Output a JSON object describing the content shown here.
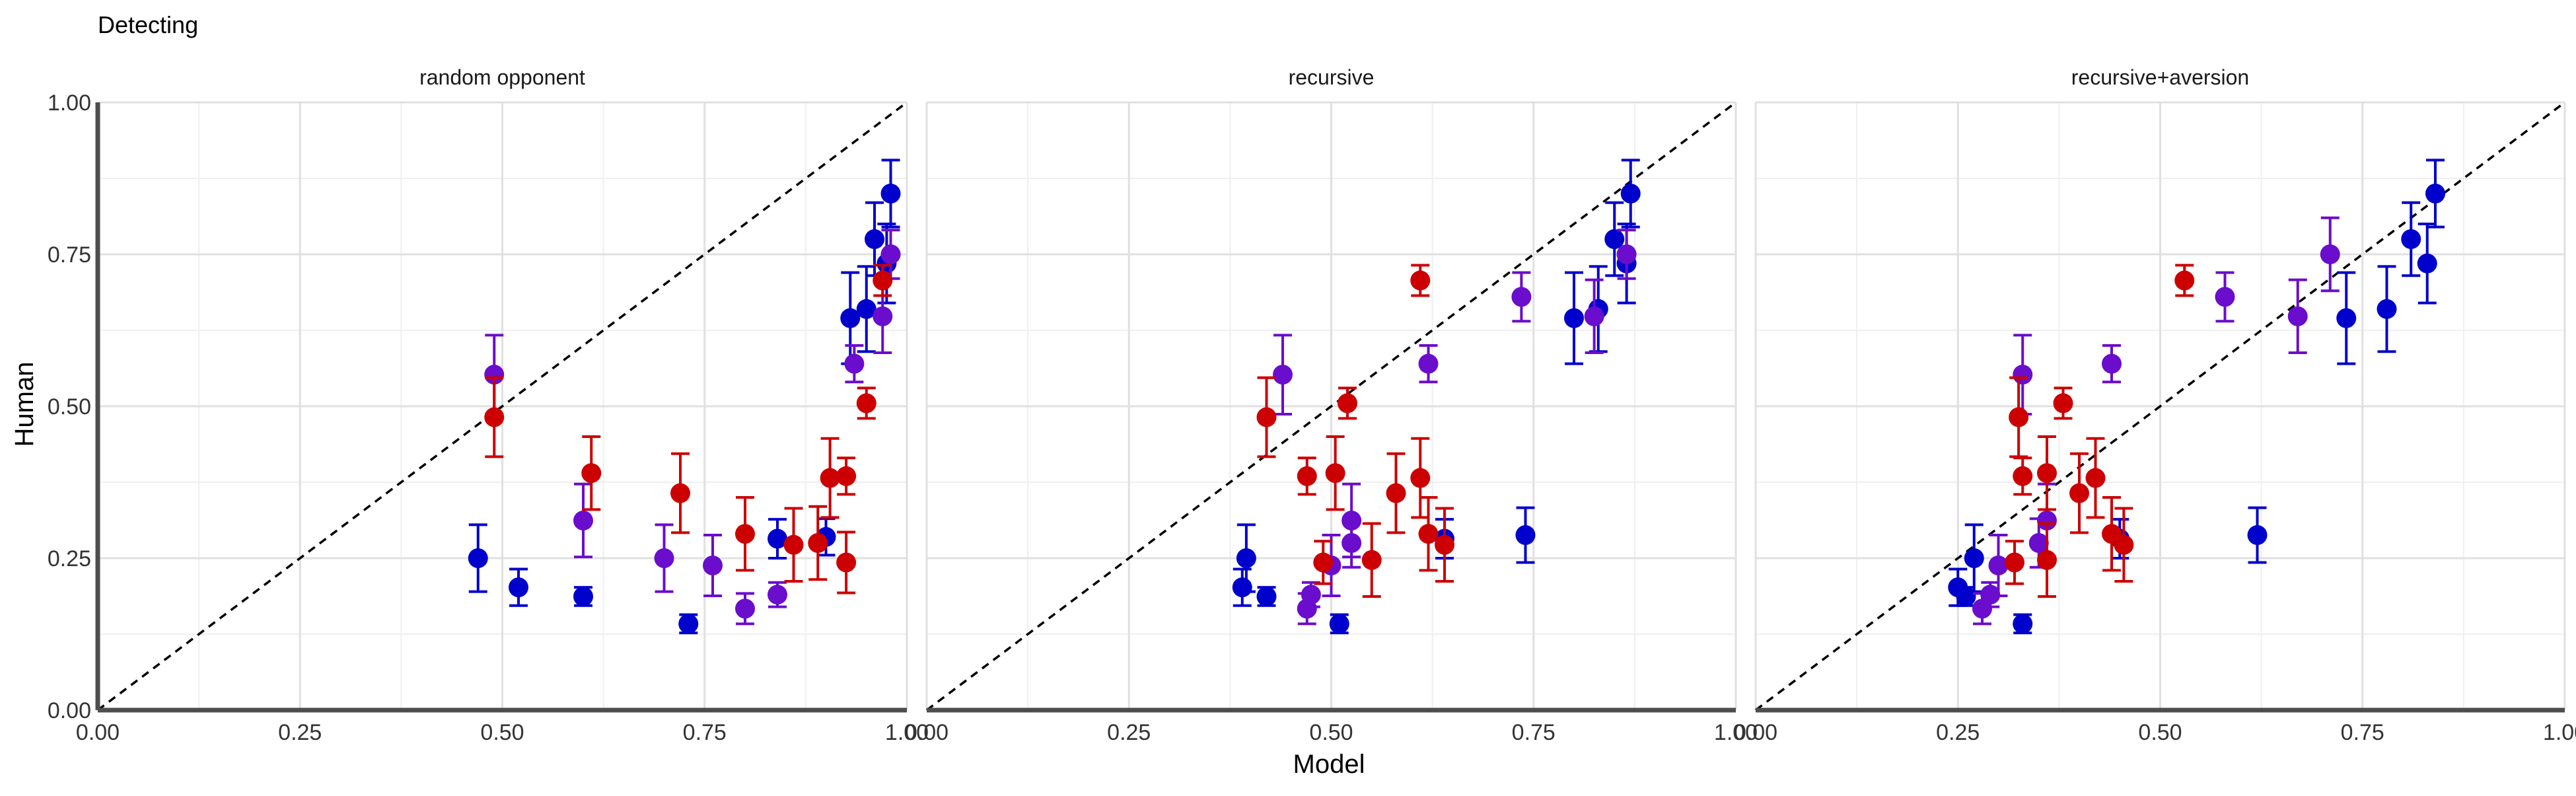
{
  "title": "Detecting",
  "xlabel": "Model",
  "ylabel": "Human",
  "colors": {
    "blue": "#0000cc",
    "purple": "#6a0dcc",
    "red": "#cc0000",
    "grid_major": "#e0e0e0",
    "grid_minor": "#efefef",
    "axis": "#4d4d4d",
    "diagonal": "#000000"
  },
  "chart_data": {
    "type": "scatter",
    "xlim": [
      0,
      1
    ],
    "ylim": [
      0,
      1
    ],
    "ticks": [
      "0.00",
      "0.25",
      "0.50",
      "0.75",
      "1.00"
    ],
    "tick_values": [
      0,
      0.25,
      0.5,
      0.75,
      1
    ],
    "grid": true,
    "reference_line": "y = x (dashed)",
    "panels": [
      {
        "title": "random opponent",
        "points": [
          {
            "color": "blue",
            "x": 0.47,
            "y": 0.25,
            "lo": 0.195,
            "hi": 0.305
          },
          {
            "color": "blue",
            "x": 0.52,
            "y": 0.202,
            "lo": 0.172,
            "hi": 0.232
          },
          {
            "color": "blue",
            "x": 0.6,
            "y": 0.187,
            "lo": 0.172,
            "hi": 0.202
          },
          {
            "color": "blue",
            "x": 0.73,
            "y": 0.142,
            "lo": 0.127,
            "hi": 0.157
          },
          {
            "color": "blue",
            "x": 0.84,
            "y": 0.282,
            "lo": 0.25,
            "hi": 0.314
          },
          {
            "color": "blue",
            "x": 0.9,
            "y": 0.285,
            "lo": 0.255,
            "hi": 0.315
          },
          {
            "color": "blue",
            "x": 0.93,
            "y": 0.645,
            "lo": 0.57,
            "hi": 0.72
          },
          {
            "color": "blue",
            "x": 0.95,
            "y": 0.66,
            "lo": 0.59,
            "hi": 0.73
          },
          {
            "color": "blue",
            "x": 0.96,
            "y": 0.775,
            "lo": 0.715,
            "hi": 0.835
          },
          {
            "color": "blue",
            "x": 0.975,
            "y": 0.735,
            "lo": 0.67,
            "hi": 0.8
          },
          {
            "color": "blue",
            "x": 0.98,
            "y": 0.85,
            "lo": 0.795,
            "hi": 0.905
          },
          {
            "color": "purple",
            "x": 0.49,
            "y": 0.552,
            "lo": 0.487,
            "hi": 0.617
          },
          {
            "color": "purple",
            "x": 0.6,
            "y": 0.312,
            "lo": 0.252,
            "hi": 0.372
          },
          {
            "color": "purple",
            "x": 0.7,
            "y": 0.25,
            "lo": 0.195,
            "hi": 0.305
          },
          {
            "color": "purple",
            "x": 0.76,
            "y": 0.238,
            "lo": 0.188,
            "hi": 0.288
          },
          {
            "color": "purple",
            "x": 0.8,
            "y": 0.167,
            "lo": 0.142,
            "hi": 0.192
          },
          {
            "color": "purple",
            "x": 0.84,
            "y": 0.19,
            "lo": 0.17,
            "hi": 0.21
          },
          {
            "color": "purple",
            "x": 0.935,
            "y": 0.57,
            "lo": 0.54,
            "hi": 0.6
          },
          {
            "color": "purple",
            "x": 0.97,
            "y": 0.648,
            "lo": 0.588,
            "hi": 0.708
          },
          {
            "color": "purple",
            "x": 0.98,
            "y": 0.75,
            "lo": 0.71,
            "hi": 0.79
          },
          {
            "color": "red",
            "x": 0.49,
            "y": 0.482,
            "lo": 0.417,
            "hi": 0.547
          },
          {
            "color": "red",
            "x": 0.61,
            "y": 0.39,
            "lo": 0.33,
            "hi": 0.45
          },
          {
            "color": "red",
            "x": 0.72,
            "y": 0.357,
            "lo": 0.292,
            "hi": 0.422
          },
          {
            "color": "red",
            "x": 0.8,
            "y": 0.29,
            "lo": 0.23,
            "hi": 0.35
          },
          {
            "color": "red",
            "x": 0.86,
            "y": 0.272,
            "lo": 0.212,
            "hi": 0.332
          },
          {
            "color": "red",
            "x": 0.89,
            "y": 0.275,
            "lo": 0.215,
            "hi": 0.335
          },
          {
            "color": "red",
            "x": 0.905,
            "y": 0.382,
            "lo": 0.317,
            "hi": 0.447
          },
          {
            "color": "red",
            "x": 0.925,
            "y": 0.385,
            "lo": 0.355,
            "hi": 0.415
          },
          {
            "color": "red",
            "x": 0.925,
            "y": 0.243,
            "lo": 0.193,
            "hi": 0.293
          },
          {
            "color": "red",
            "x": 0.95,
            "y": 0.505,
            "lo": 0.48,
            "hi": 0.53
          },
          {
            "color": "red",
            "x": 0.97,
            "y": 0.707,
            "lo": 0.682,
            "hi": 0.732
          }
        ]
      },
      {
        "title": "recursive",
        "points": [
          {
            "color": "blue",
            "x": 0.395,
            "y": 0.25,
            "lo": 0.195,
            "hi": 0.305
          },
          {
            "color": "blue",
            "x": 0.39,
            "y": 0.202,
            "lo": 0.172,
            "hi": 0.232
          },
          {
            "color": "blue",
            "x": 0.42,
            "y": 0.187,
            "lo": 0.172,
            "hi": 0.202
          },
          {
            "color": "blue",
            "x": 0.51,
            "y": 0.142,
            "lo": 0.127,
            "hi": 0.157
          },
          {
            "color": "blue",
            "x": 0.64,
            "y": 0.282,
            "lo": 0.25,
            "hi": 0.314
          },
          {
            "color": "blue",
            "x": 0.74,
            "y": 0.288,
            "lo": 0.243,
            "hi": 0.333
          },
          {
            "color": "blue",
            "x": 0.8,
            "y": 0.645,
            "lo": 0.57,
            "hi": 0.72
          },
          {
            "color": "blue",
            "x": 0.83,
            "y": 0.66,
            "lo": 0.59,
            "hi": 0.73
          },
          {
            "color": "blue",
            "x": 0.85,
            "y": 0.775,
            "lo": 0.715,
            "hi": 0.835
          },
          {
            "color": "blue",
            "x": 0.865,
            "y": 0.735,
            "lo": 0.67,
            "hi": 0.8
          },
          {
            "color": "blue",
            "x": 0.87,
            "y": 0.85,
            "lo": 0.795,
            "hi": 0.905
          },
          {
            "color": "purple",
            "x": 0.44,
            "y": 0.552,
            "lo": 0.487,
            "hi": 0.617
          },
          {
            "color": "purple",
            "x": 0.525,
            "y": 0.312,
            "lo": 0.252,
            "hi": 0.372
          },
          {
            "color": "purple",
            "x": 0.525,
            "y": 0.275,
            "lo": 0.235,
            "hi": 0.315
          },
          {
            "color": "purple",
            "x": 0.5,
            "y": 0.238,
            "lo": 0.188,
            "hi": 0.288
          },
          {
            "color": "purple",
            "x": 0.47,
            "y": 0.167,
            "lo": 0.142,
            "hi": 0.192
          },
          {
            "color": "purple",
            "x": 0.475,
            "y": 0.19,
            "lo": 0.17,
            "hi": 0.21
          },
          {
            "color": "purple",
            "x": 0.62,
            "y": 0.57,
            "lo": 0.54,
            "hi": 0.6
          },
          {
            "color": "purple",
            "x": 0.735,
            "y": 0.68,
            "lo": 0.64,
            "hi": 0.72
          },
          {
            "color": "purple",
            "x": 0.825,
            "y": 0.648,
            "lo": 0.588,
            "hi": 0.708
          },
          {
            "color": "purple",
            "x": 0.865,
            "y": 0.75,
            "lo": 0.71,
            "hi": 0.79
          },
          {
            "color": "red",
            "x": 0.42,
            "y": 0.482,
            "lo": 0.417,
            "hi": 0.547
          },
          {
            "color": "red",
            "x": 0.47,
            "y": 0.385,
            "lo": 0.355,
            "hi": 0.415
          },
          {
            "color": "red",
            "x": 0.49,
            "y": 0.243,
            "lo": 0.208,
            "hi": 0.278
          },
          {
            "color": "red",
            "x": 0.505,
            "y": 0.39,
            "lo": 0.33,
            "hi": 0.45
          },
          {
            "color": "red",
            "x": 0.52,
            "y": 0.505,
            "lo": 0.48,
            "hi": 0.53
          },
          {
            "color": "red",
            "x": 0.55,
            "y": 0.247,
            "lo": 0.187,
            "hi": 0.307
          },
          {
            "color": "red",
            "x": 0.58,
            "y": 0.357,
            "lo": 0.292,
            "hi": 0.422
          },
          {
            "color": "red",
            "x": 0.61,
            "y": 0.382,
            "lo": 0.317,
            "hi": 0.447
          },
          {
            "color": "red",
            "x": 0.62,
            "y": 0.29,
            "lo": 0.23,
            "hi": 0.35
          },
          {
            "color": "red",
            "x": 0.64,
            "y": 0.272,
            "lo": 0.212,
            "hi": 0.332
          },
          {
            "color": "red",
            "x": 0.61,
            "y": 0.707,
            "lo": 0.682,
            "hi": 0.732
          }
        ]
      },
      {
        "title": "recursive+aversion",
        "points": [
          {
            "color": "blue",
            "x": 0.27,
            "y": 0.25,
            "lo": 0.195,
            "hi": 0.305
          },
          {
            "color": "blue",
            "x": 0.25,
            "y": 0.202,
            "lo": 0.172,
            "hi": 0.232
          },
          {
            "color": "blue",
            "x": 0.26,
            "y": 0.187,
            "lo": 0.172,
            "hi": 0.202
          },
          {
            "color": "blue",
            "x": 0.33,
            "y": 0.142,
            "lo": 0.127,
            "hi": 0.157
          },
          {
            "color": "blue",
            "x": 0.45,
            "y": 0.282,
            "lo": 0.25,
            "hi": 0.314
          },
          {
            "color": "blue",
            "x": 0.62,
            "y": 0.288,
            "lo": 0.243,
            "hi": 0.333
          },
          {
            "color": "blue",
            "x": 0.73,
            "y": 0.645,
            "lo": 0.57,
            "hi": 0.72
          },
          {
            "color": "blue",
            "x": 0.78,
            "y": 0.66,
            "lo": 0.59,
            "hi": 0.73
          },
          {
            "color": "blue",
            "x": 0.81,
            "y": 0.775,
            "lo": 0.715,
            "hi": 0.835
          },
          {
            "color": "blue",
            "x": 0.83,
            "y": 0.735,
            "lo": 0.67,
            "hi": 0.8
          },
          {
            "color": "blue",
            "x": 0.84,
            "y": 0.85,
            "lo": 0.795,
            "hi": 0.905
          },
          {
            "color": "purple",
            "x": 0.33,
            "y": 0.552,
            "lo": 0.487,
            "hi": 0.617
          },
          {
            "color": "purple",
            "x": 0.36,
            "y": 0.312,
            "lo": 0.252,
            "hi": 0.372
          },
          {
            "color": "purple",
            "x": 0.35,
            "y": 0.275,
            "lo": 0.235,
            "hi": 0.315
          },
          {
            "color": "purple",
            "x": 0.3,
            "y": 0.238,
            "lo": 0.188,
            "hi": 0.288
          },
          {
            "color": "purple",
            "x": 0.28,
            "y": 0.167,
            "lo": 0.142,
            "hi": 0.192
          },
          {
            "color": "purple",
            "x": 0.29,
            "y": 0.19,
            "lo": 0.17,
            "hi": 0.21
          },
          {
            "color": "purple",
            "x": 0.44,
            "y": 0.57,
            "lo": 0.54,
            "hi": 0.6
          },
          {
            "color": "purple",
            "x": 0.58,
            "y": 0.68,
            "lo": 0.64,
            "hi": 0.72
          },
          {
            "color": "purple",
            "x": 0.67,
            "y": 0.648,
            "lo": 0.588,
            "hi": 0.708
          },
          {
            "color": "purple",
            "x": 0.71,
            "y": 0.75,
            "lo": 0.69,
            "hi": 0.81
          },
          {
            "color": "red",
            "x": 0.325,
            "y": 0.482,
            "lo": 0.417,
            "hi": 0.547
          },
          {
            "color": "red",
            "x": 0.33,
            "y": 0.385,
            "lo": 0.355,
            "hi": 0.415
          },
          {
            "color": "red",
            "x": 0.32,
            "y": 0.243,
            "lo": 0.208,
            "hi": 0.278
          },
          {
            "color": "red",
            "x": 0.36,
            "y": 0.39,
            "lo": 0.33,
            "hi": 0.45
          },
          {
            "color": "red",
            "x": 0.38,
            "y": 0.505,
            "lo": 0.48,
            "hi": 0.53
          },
          {
            "color": "red",
            "x": 0.36,
            "y": 0.247,
            "lo": 0.187,
            "hi": 0.307
          },
          {
            "color": "red",
            "x": 0.4,
            "y": 0.357,
            "lo": 0.292,
            "hi": 0.422
          },
          {
            "color": "red",
            "x": 0.42,
            "y": 0.382,
            "lo": 0.317,
            "hi": 0.447
          },
          {
            "color": "red",
            "x": 0.44,
            "y": 0.29,
            "lo": 0.23,
            "hi": 0.35
          },
          {
            "color": "red",
            "x": 0.455,
            "y": 0.272,
            "lo": 0.212,
            "hi": 0.332
          },
          {
            "color": "red",
            "x": 0.53,
            "y": 0.707,
            "lo": 0.682,
            "hi": 0.732
          }
        ]
      }
    ]
  }
}
